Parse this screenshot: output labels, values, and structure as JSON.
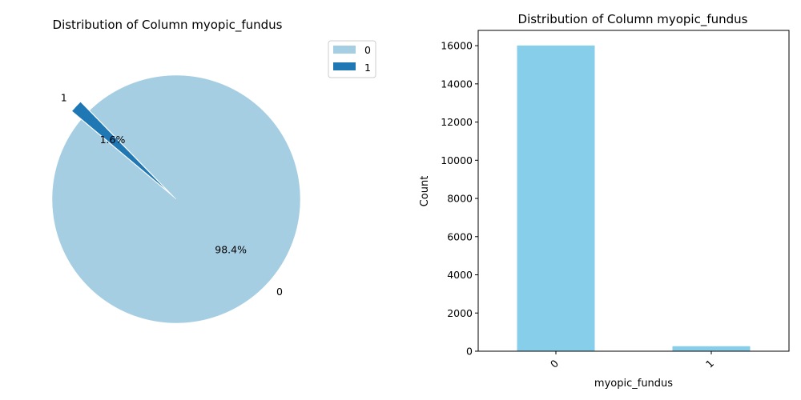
{
  "chart_data": [
    {
      "type": "pie",
      "title": "Distribution of Column myopic_fundus",
      "labels": [
        "0",
        "1"
      ],
      "values": [
        98.4,
        1.6
      ],
      "autopct_labels": [
        "98.4%",
        "1.6%"
      ],
      "colors": [
        "#a6cee3",
        "#1f78b4"
      ],
      "explode": [
        0,
        0.1
      ],
      "legend": {
        "placement": "outside-top-right",
        "entries": [
          "0",
          "1"
        ]
      }
    },
    {
      "type": "bar",
      "title": "Distribution of Column myopic_fundus",
      "xlabel": "myopic_fundus",
      "ylabel": "Count",
      "categories": [
        "0",
        "1"
      ],
      "values": [
        16010,
        260
      ],
      "color": "#87ceeb",
      "ylim": [
        0,
        16800
      ],
      "yticks": [
        0,
        2000,
        4000,
        6000,
        8000,
        10000,
        12000,
        14000,
        16000
      ],
      "ytick_labels": [
        "0",
        "2000",
        "4000",
        "6000",
        "8000",
        "10000",
        "12000",
        "14000",
        "16000"
      ],
      "grid": false
    }
  ]
}
